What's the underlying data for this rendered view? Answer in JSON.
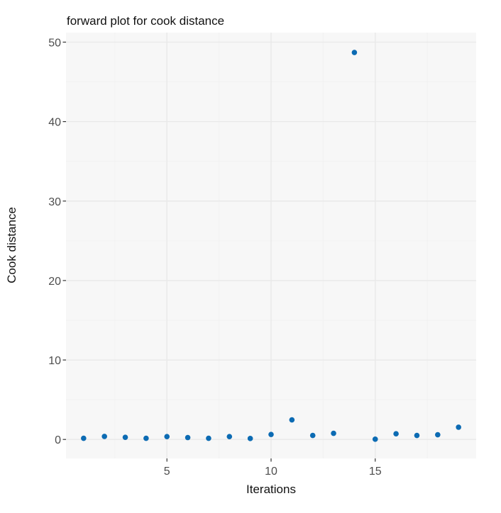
{
  "title": "forward plot for cook distance",
  "chart_data": {
    "type": "scatter",
    "title": "forward plot for cook distance",
    "xlabel": "Iterations",
    "ylabel": "Cook distance",
    "x": [
      1,
      2,
      3,
      4,
      5,
      6,
      7,
      8,
      9,
      10,
      11,
      12,
      13,
      14,
      15,
      16,
      17,
      18,
      19
    ],
    "y": [
      0.15,
      0.38,
      0.27,
      0.15,
      0.36,
      0.24,
      0.15,
      0.36,
      0.12,
      0.63,
      2.46,
      0.5,
      0.77,
      48.7,
      0.03,
      0.71,
      0.5,
      0.59,
      1.54
    ],
    "xlim": [
      0.154,
      19.846
    ],
    "ylim": [
      -2.39,
      51.2
    ],
    "x_ticks": [
      5,
      10,
      15
    ],
    "y_ticks": [
      0,
      10,
      20,
      30,
      40,
      50
    ],
    "x_minor_ticks": [
      2.5,
      7.5,
      12.5,
      17.5
    ],
    "y_minor_ticks": [
      5,
      15,
      25,
      35,
      45
    ],
    "grid": true,
    "legend": false,
    "colors": {
      "point": "#0c6bb3",
      "panel_bg": "#f7f7f7",
      "major_grid": "#e9e9e9",
      "minor_grid": "#f1f1f1",
      "axis_tick": "#333333",
      "tick_label": "#4d4d4d",
      "title_text": "#111111"
    }
  }
}
